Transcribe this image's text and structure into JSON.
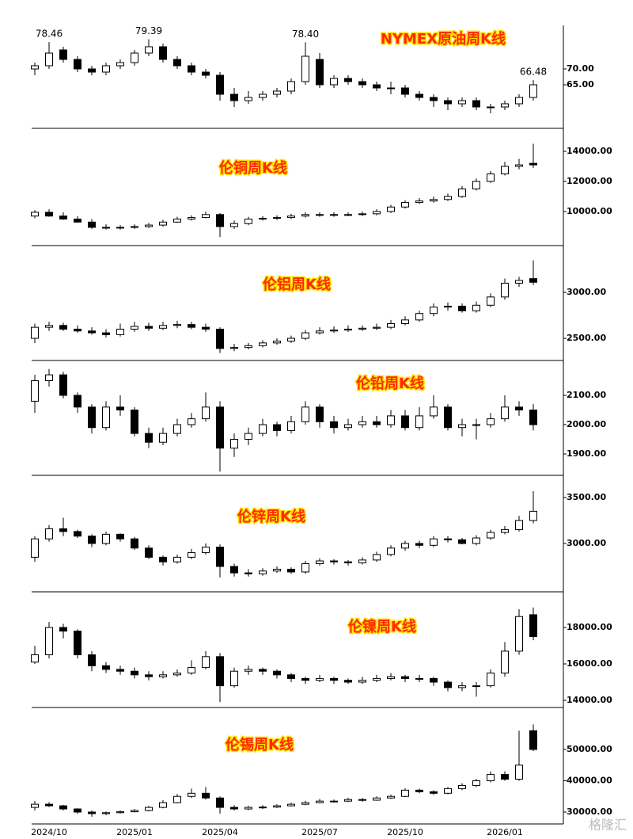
{
  "chart_data": [
    {
      "type": "candlestick",
      "title": "NYMEX原油周K线",
      "ylim": [
        51.25,
        83.75
      ],
      "yticks": [
        {
          "value": 70,
          "label": "70.00"
        },
        {
          "value": 65,
          "label": "65.00"
        }
      ],
      "open": [
        70,
        71,
        76,
        73,
        70,
        69,
        71,
        72,
        75,
        77,
        73,
        71,
        69,
        68,
        62,
        60,
        61,
        62,
        63,
        66,
        73,
        65,
        67,
        66,
        65,
        64,
        64,
        62,
        61,
        60,
        59,
        60,
        58,
        58,
        59,
        61
      ],
      "high": [
        72,
        78.46,
        77,
        74,
        71,
        72,
        73,
        76,
        79.39,
        78,
        74,
        72,
        70,
        69,
        64,
        63,
        63,
        64,
        67,
        78.4,
        75,
        68,
        68,
        67,
        66,
        66,
        65,
        63,
        62,
        61,
        61,
        61,
        59,
        60,
        62,
        66.48
      ],
      "low": [
        68,
        70,
        72,
        69,
        68,
        68,
        70,
        71,
        74,
        72,
        70,
        68,
        67,
        60,
        58,
        59,
        60,
        61,
        62,
        65,
        64,
        64,
        65,
        64,
        63,
        62,
        61,
        60,
        58,
        57,
        58,
        57,
        56,
        57,
        58,
        60
      ],
      "close": [
        71,
        75,
        73,
        70,
        69,
        71,
        72,
        75,
        77,
        73,
        71,
        69,
        68,
        62,
        60,
        61,
        62,
        63,
        66,
        74,
        65,
        67,
        66,
        65,
        64,
        64,
        62,
        61,
        60,
        59,
        60,
        58,
        58,
        59,
        61,
        65
      ],
      "high_labels": [
        null,
        "78.46",
        null,
        null,
        null,
        null,
        null,
        null,
        "79.39",
        null,
        null,
        null,
        null,
        null,
        null,
        null,
        null,
        null,
        null,
        "78.40",
        null,
        null,
        null,
        null,
        null,
        null,
        null,
        null,
        null,
        null,
        null,
        null,
        null,
        null,
        null,
        "66.48"
      ]
    },
    {
      "type": "candlestick",
      "title": "伦铜周K线",
      "ylim": [
        7737,
        15526
      ],
      "yticks": [
        {
          "value": 14000,
          "label": "14000.00"
        },
        {
          "value": 12000,
          "label": "12000.00"
        },
        {
          "value": 10000,
          "label": "10000.00"
        }
      ],
      "open": [
        9700,
        9950,
        9700,
        9500,
        9300,
        8950,
        8900,
        8950,
        9000,
        9100,
        9300,
        9500,
        9600,
        9800,
        9000,
        9200,
        9500,
        9550,
        9600,
        9700,
        9800,
        9750,
        9800,
        9800,
        9850,
        10000,
        10300,
        10600,
        10700,
        10800,
        11000,
        11500,
        12000,
        12500,
        13000,
        13200
      ],
      "high": [
        10100,
        10150,
        9950,
        9700,
        9500,
        9150,
        9100,
        9150,
        9250,
        9450,
        9650,
        9750,
        10000,
        9900,
        9400,
        9650,
        9700,
        9750,
        9850,
        9950,
        9950,
        9950,
        9950,
        10000,
        10150,
        10450,
        10750,
        10900,
        11000,
        11200,
        11700,
        12200,
        12700,
        13300,
        13500,
        14500
      ],
      "low": [
        9550,
        9650,
        9450,
        9250,
        8850,
        8800,
        8800,
        8850,
        8900,
        9000,
        9250,
        9400,
        9550,
        8300,
        8850,
        9100,
        9400,
        9450,
        9500,
        9600,
        9650,
        9650,
        9700,
        9700,
        9750,
        9900,
        10200,
        10500,
        10600,
        10700,
        10900,
        11400,
        11900,
        12400,
        12800,
        12900
      ],
      "close": [
        9950,
        9700,
        9500,
        9300,
        8950,
        8900,
        8950,
        9000,
        9100,
        9300,
        9500,
        9600,
        9800,
        9000,
        9200,
        9500,
        9550,
        9600,
        9700,
        9800,
        9750,
        9800,
        9800,
        9850,
        10000,
        10300,
        10600,
        10700,
        10800,
        11000,
        11500,
        12000,
        12500,
        13000,
        13100,
        13100
      ]
    },
    {
      "type": "candlestick",
      "title": "伦铝周K线",
      "ylim": [
        2259,
        3509
      ],
      "yticks": [
        {
          "value": 3000,
          "label": "3000.00"
        },
        {
          "value": 2500,
          "label": "2500.00"
        }
      ],
      "open": [
        2500,
        2620,
        2640,
        2600,
        2580,
        2560,
        2540,
        2600,
        2630,
        2610,
        2640,
        2650,
        2620,
        2600,
        2390,
        2400,
        2420,
        2450,
        2470,
        2500,
        2560,
        2580,
        2590,
        2600,
        2610,
        2620,
        2660,
        2700,
        2770,
        2840,
        2850,
        2800,
        2860,
        2950,
        3100,
        3150
      ],
      "high": [
        2660,
        2680,
        2670,
        2640,
        2620,
        2600,
        2660,
        2680,
        2670,
        2680,
        2690,
        2680,
        2660,
        2620,
        2440,
        2450,
        2480,
        2500,
        2530,
        2590,
        2620,
        2630,
        2640,
        2640,
        2660,
        2700,
        2740,
        2800,
        2880,
        2890,
        2880,
        2900,
        2990,
        3150,
        3170,
        3350
      ],
      "low": [
        2450,
        2580,
        2580,
        2560,
        2540,
        2510,
        2520,
        2570,
        2580,
        2590,
        2610,
        2600,
        2570,
        2340,
        2360,
        2380,
        2400,
        2430,
        2450,
        2480,
        2540,
        2560,
        2570,
        2580,
        2590,
        2600,
        2640,
        2680,
        2740,
        2800,
        2780,
        2780,
        2840,
        2920,
        3060,
        3080
      ],
      "close": [
        2620,
        2640,
        2600,
        2580,
        2560,
        2540,
        2600,
        2630,
        2610,
        2640,
        2650,
        2620,
        2600,
        2390,
        2400,
        2420,
        2450,
        2470,
        2500,
        2560,
        2580,
        2590,
        2600,
        2610,
        2620,
        2660,
        2700,
        2770,
        2840,
        2850,
        2800,
        2860,
        2950,
        3100,
        3130,
        3110
      ]
    },
    {
      "type": "candlestick",
      "title": "伦铅周K线",
      "ylim": [
        1827,
        2219
      ],
      "yticks": [
        {
          "value": 2100,
          "label": "2100.00"
        },
        {
          "value": 2000,
          "label": "2000.00"
        },
        {
          "value": 1900,
          "label": "1900.00"
        }
      ],
      "open": [
        2080,
        2150,
        2170,
        2100,
        2060,
        1990,
        2060,
        2050,
        1970,
        1940,
        1970,
        2000,
        2020,
        2060,
        1920,
        1950,
        1970,
        2000,
        1980,
        2010,
        2060,
        2010,
        1990,
        2000,
        2010,
        2000,
        2030,
        1990,
        2030,
        2060,
        1990,
        2000,
        2000,
        2020,
        2060,
        2050
      ],
      "high": [
        2170,
        2190,
        2180,
        2110,
        2070,
        2080,
        2100,
        2060,
        1990,
        1990,
        2020,
        2040,
        2110,
        2080,
        1970,
        1990,
        2020,
        2010,
        2030,
        2080,
        2070,
        2030,
        2020,
        2030,
        2030,
        2050,
        2050,
        2060,
        2100,
        2070,
        2020,
        2020,
        2040,
        2100,
        2080,
        2070
      ],
      "low": [
        2040,
        2130,
        2090,
        2040,
        1970,
        1980,
        2030,
        1960,
        1920,
        1930,
        1960,
        1990,
        2010,
        1840,
        1890,
        1930,
        1960,
        1960,
        1970,
        2000,
        1990,
        1970,
        1980,
        1990,
        1990,
        1990,
        1980,
        1980,
        2020,
        1980,
        1960,
        1950,
        1990,
        2010,
        2030,
        1980
      ],
      "close": [
        2150,
        2170,
        2100,
        2060,
        1990,
        2060,
        2050,
        1970,
        1940,
        1970,
        2000,
        2020,
        2060,
        1920,
        1950,
        1970,
        2000,
        1980,
        2010,
        2060,
        2010,
        1990,
        2000,
        2010,
        2000,
        2030,
        1990,
        2030,
        2060,
        1990,
        2000,
        2000,
        2020,
        2060,
        2050,
        2000
      ]
    },
    {
      "type": "candlestick",
      "title": "伦锌周K线",
      "ylim": [
        2474,
        3741
      ],
      "yticks": [
        {
          "value": 3500,
          "label": "3500.00"
        },
        {
          "value": 3000,
          "label": "3000.00"
        }
      ],
      "open": [
        2850,
        3050,
        3160,
        3130,
        3080,
        3000,
        3100,
        3050,
        2950,
        2850,
        2800,
        2850,
        2900,
        2960,
        2750,
        2680,
        2670,
        2700,
        2720,
        2690,
        2780,
        2810,
        2800,
        2790,
        2820,
        2880,
        2950,
        3000,
        2980,
        3050,
        3040,
        3000,
        3060,
        3120,
        3150,
        3250
      ],
      "high": [
        3080,
        3200,
        3280,
        3150,
        3100,
        3130,
        3110,
        3070,
        2980,
        2870,
        2880,
        2940,
        3000,
        2990,
        2780,
        2720,
        2730,
        2750,
        2740,
        2810,
        2840,
        2830,
        2820,
        2850,
        2910,
        2980,
        3030,
        3030,
        3080,
        3080,
        3060,
        3090,
        3150,
        3190,
        3300,
        3570
      ],
      "low": [
        2800,
        3020,
        3080,
        3060,
        2960,
        2980,
        3020,
        2930,
        2830,
        2760,
        2780,
        2830,
        2880,
        2630,
        2640,
        2640,
        2650,
        2680,
        2670,
        2670,
        2760,
        2770,
        2760,
        2770,
        2800,
        2860,
        2920,
        2950,
        2960,
        3010,
        2990,
        2980,
        3040,
        3100,
        3130,
        3220
      ],
      "close": [
        3050,
        3160,
        3130,
        3080,
        3000,
        3100,
        3050,
        2950,
        2850,
        2800,
        2850,
        2900,
        2960,
        2750,
        2680,
        2670,
        2700,
        2720,
        2690,
        2780,
        2810,
        2800,
        2790,
        2820,
        2880,
        2950,
        3000,
        2980,
        3050,
        3040,
        3000,
        3060,
        3120,
        3150,
        3250,
        3350
      ]
    },
    {
      "type": "candlestick",
      "title": "伦镍周K线",
      "ylim": [
        13609,
        19957
      ],
      "yticks": [
        {
          "value": 18000,
          "label": "18000.00"
        },
        {
          "value": 16000,
          "label": "16000.00"
        },
        {
          "value": 14000,
          "label": "14000.00"
        }
      ],
      "open": [
        16100,
        16500,
        18000,
        17800,
        16500,
        15900,
        15700,
        15600,
        15400,
        15300,
        15400,
        15500,
        15800,
        16400,
        14800,
        15600,
        15700,
        15600,
        15400,
        15200,
        15100,
        15200,
        15100,
        15000,
        15100,
        15200,
        15300,
        15200,
        15200,
        15000,
        14700,
        14800,
        14800,
        15500,
        16700,
        18700
      ],
      "high": [
        17000,
        18300,
        18200,
        17900,
        16700,
        16100,
        15900,
        15800,
        15600,
        15600,
        15700,
        16200,
        16700,
        16600,
        15800,
        15900,
        15800,
        15700,
        15500,
        15300,
        15400,
        15300,
        15200,
        15300,
        15400,
        15500,
        15400,
        15400,
        15300,
        15100,
        15000,
        15000,
        15700,
        17200,
        19000,
        19100
      ],
      "low": [
        16000,
        16300,
        17400,
        16300,
        15600,
        15500,
        15400,
        15200,
        15100,
        15200,
        15300,
        15400,
        15700,
        13900,
        14700,
        15400,
        15400,
        15200,
        15000,
        14900,
        15000,
        14900,
        14900,
        14900,
        15000,
        15100,
        15000,
        15000,
        14800,
        14500,
        14500,
        14200,
        14700,
        15300,
        16500,
        17300
      ],
      "close": [
        16500,
        18000,
        17800,
        16500,
        15900,
        15700,
        15600,
        15400,
        15300,
        15400,
        15500,
        15800,
        16400,
        14800,
        15600,
        15700,
        15600,
        15400,
        15200,
        15100,
        15200,
        15100,
        15000,
        15100,
        15200,
        15300,
        15200,
        15200,
        15000,
        14700,
        14800,
        14800,
        15500,
        16700,
        18600,
        17500
      ]
    },
    {
      "type": "candlestick",
      "title": "伦锡周K线",
      "ylim": [
        26203,
        63418
      ],
      "yticks": [
        {
          "value": 50000,
          "label": "50000.00"
        },
        {
          "value": 40000,
          "label": "40000.00"
        },
        {
          "value": 30000,
          "label": "30000.00"
        }
      ],
      "categories": [
        null,
        "2024/10",
        null,
        null,
        null,
        null,
        null,
        "2025/01",
        null,
        null,
        null,
        null,
        null,
        "2025/04",
        null,
        null,
        null,
        null,
        null,
        null,
        "2025/07",
        null,
        null,
        null,
        null,
        null,
        "2025/10",
        null,
        null,
        null,
        null,
        null,
        null,
        "2026/01",
        null,
        null
      ],
      "open": [
        31500,
        32500,
        32000,
        31000,
        30000,
        29500,
        29800,
        30100,
        30500,
        31500,
        33000,
        35000,
        36000,
        34500,
        31500,
        31000,
        31500,
        31600,
        32000,
        32500,
        33000,
        33500,
        33500,
        34000,
        33800,
        34500,
        35000,
        37000,
        36500,
        36000,
        37500,
        38500,
        40000,
        42000,
        40500,
        56000
      ],
      "high": [
        33500,
        33200,
        32300,
        31200,
        30500,
        30200,
        30500,
        31000,
        32000,
        33800,
        35800,
        37500,
        38000,
        35000,
        32200,
        32000,
        32200,
        32500,
        33000,
        33600,
        34200,
        34000,
        34600,
        34500,
        35000,
        35600,
        37600,
        37500,
        37000,
        38000,
        39200,
        40600,
        43000,
        43000,
        56000,
        58000
      ],
      "low": [
        30500,
        31600,
        30500,
        29500,
        28500,
        29000,
        29500,
        29900,
        30200,
        31200,
        32800,
        34500,
        34000,
        29500,
        30500,
        30600,
        31000,
        31300,
        31800,
        32200,
        32800,
        33000,
        33200,
        33300,
        33600,
        34200,
        34800,
        36000,
        35500,
        35700,
        37000,
        38000,
        39500,
        40000,
        40000,
        49500
      ],
      "close": [
        32500,
        32000,
        31000,
        30000,
        29500,
        29800,
        30100,
        30500,
        31500,
        33000,
        35000,
        36000,
        34500,
        31500,
        31000,
        31500,
        31600,
        32000,
        32500,
        33000,
        33500,
        33500,
        34000,
        33800,
        34500,
        35000,
        37000,
        36500,
        36000,
        37500,
        38500,
        40000,
        42000,
        40500,
        45000,
        50000
      ]
    }
  ],
  "watermark": "格隆汇"
}
